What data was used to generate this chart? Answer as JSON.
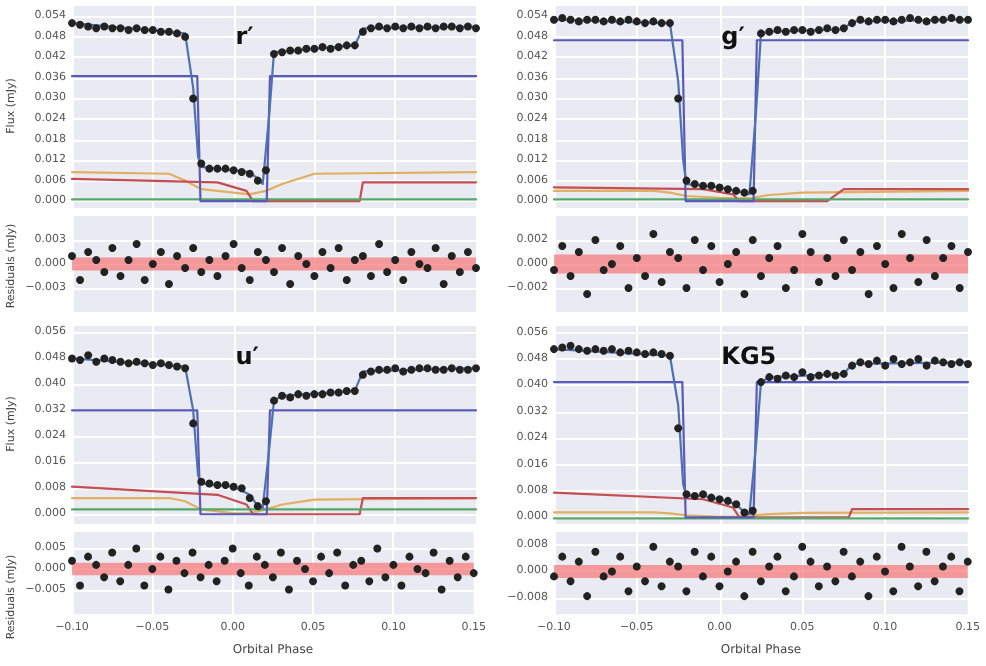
{
  "chart_data": [
    {
      "type": "line",
      "title": "r′",
      "ylabel": "Flux (mJy)",
      "grid": true,
      "tick_labels": "y",
      "xlim": [
        -0.1,
        0.15
      ],
      "xticks": [
        -0.1,
        -0.05,
        0,
        0.05,
        0.1,
        0.15
      ],
      "ylim": [
        -0.002,
        0.057
      ],
      "yticks": [
        {
          "value": 0,
          "label": "0.000"
        },
        {
          "value": 0.006,
          "label": "0.006"
        },
        {
          "value": 0.012,
          "label": "0.012"
        },
        {
          "value": 0.018,
          "label": "0.018"
        },
        {
          "value": 0.024,
          "label": "0.024"
        },
        {
          "value": 0.03,
          "label": "0.030"
        },
        {
          "value": 0.036,
          "label": "0.036"
        },
        {
          "value": 0.042,
          "label": "0.042"
        },
        {
          "value": 0.048,
          "label": "0.048"
        },
        {
          "value": 0.054,
          "label": "0.054"
        }
      ],
      "x": [
        -0.1,
        -0.095,
        -0.09,
        -0.085,
        -0.08,
        -0.075,
        -0.07,
        -0.065,
        -0.06,
        -0.055,
        -0.05,
        -0.045,
        -0.04,
        -0.035,
        -0.03,
        -0.025,
        -0.02,
        -0.015,
        -0.01,
        -0.005,
        0,
        0.005,
        0.01,
        0.015,
        0.02,
        0.025,
        0.03,
        0.035,
        0.04,
        0.045,
        0.05,
        0.055,
        0.06,
        0.065,
        0.07,
        0.075,
        0.08,
        0.085,
        0.09,
        0.095,
        0.1,
        0.105,
        0.11,
        0.115,
        0.12,
        0.125,
        0.13,
        0.135,
        0.14,
        0.145,
        0.15
      ],
      "series": [
        {
          "type": "line",
          "color": "#e0b060",
          "x": [
            -0.1,
            -0.04,
            -0.03,
            -0.02,
            0,
            0.01,
            0.02,
            0.03,
            0.05,
            0.15
          ],
          "values": [
            0.0085,
            0.008,
            0.006,
            0.0035,
            0.0025,
            0.002,
            0.003,
            0.005,
            0.008,
            0.0085
          ]
        },
        {
          "type": "line",
          "color": "#c44e52",
          "x": [
            -0.1,
            -0.01,
            0.008,
            0.012,
            0.078,
            0.08,
            0.15
          ],
          "values": [
            0.0065,
            0.0055,
            0.003,
            0,
            0,
            0.0055,
            0.0055
          ]
        },
        {
          "type": "line",
          "color": "#55a868",
          "x": [
            -0.1,
            0.15
          ],
          "values": [
            0.0005,
            0.0005
          ]
        },
        {
          "type": "line",
          "color": "#5a5ab8",
          "x": [
            -0.1,
            -0.0225,
            -0.0205,
            0.0205,
            0.0225,
            0.15
          ],
          "values": [
            0.0365,
            0.0365,
            0,
            0,
            0.0365,
            0.0365
          ]
        },
        {
          "type": "line",
          "color": "#4c72b0",
          "x": [
            -0.1,
            -0.03,
            -0.025,
            -0.022,
            -0.02,
            -0.01,
            0,
            0.01,
            0.015,
            0.018,
            0.022,
            0.025,
            0.03,
            0.075,
            0.08,
            0.15
          ],
          "values": [
            0.052,
            0.049,
            0.033,
            0.013,
            0.01,
            0.0095,
            0.009,
            0.0085,
            0.0065,
            0.005,
            0.025,
            0.0435,
            0.0437,
            0.0455,
            0.0505,
            0.051
          ]
        },
        {
          "type": "scatter",
          "color": "#222222",
          "values": [
            0.052,
            0.0515,
            0.051,
            0.0505,
            0.051,
            0.0505,
            0.0505,
            0.05,
            0.0505,
            0.05,
            0.05,
            0.0495,
            0.0495,
            0.049,
            0.048,
            0.03,
            0.011,
            0.0095,
            0.0095,
            0.0095,
            0.009,
            0.0085,
            0.008,
            0.006,
            0.009,
            0.043,
            0.0435,
            0.044,
            0.044,
            0.0445,
            0.0445,
            0.045,
            0.0445,
            0.045,
            0.0455,
            0.0455,
            0.0495,
            0.0505,
            0.051,
            0.0505,
            0.051,
            0.0505,
            0.051,
            0.0505,
            0.051,
            0.0505,
            0.051,
            0.051,
            0.0505,
            0.051,
            0.0505
          ]
        }
      ]
    },
    {
      "type": "scatter",
      "ylabel": "Residuals (mJy)",
      "grid": true,
      "tick_labels": "y",
      "xlim": [
        -0.1,
        0.15
      ],
      "xticks": [
        -0.1,
        -0.05,
        0,
        0.05,
        0.1,
        0.15
      ],
      "ylim": [
        -0.006,
        0.006
      ],
      "yticks": [
        {
          "value": -0.003,
          "label": "−0.003"
        },
        {
          "value": 0,
          "label": "0.000"
        },
        {
          "value": 0.003,
          "label": "0.003"
        }
      ],
      "bands": [
        {
          "axis": "y",
          "from": -0.0008,
          "to": 0.0008,
          "color": "#f47c7c"
        }
      ],
      "x": [
        -0.1,
        -0.095,
        -0.09,
        -0.085,
        -0.08,
        -0.075,
        -0.07,
        -0.065,
        -0.06,
        -0.055,
        -0.05,
        -0.045,
        -0.04,
        -0.035,
        -0.03,
        -0.025,
        -0.02,
        -0.015,
        -0.01,
        -0.005,
        0,
        0.005,
        0.01,
        0.015,
        0.02,
        0.025,
        0.03,
        0.035,
        0.04,
        0.045,
        0.05,
        0.055,
        0.06,
        0.065,
        0.07,
        0.075,
        0.08,
        0.085,
        0.09,
        0.095,
        0.1,
        0.105,
        0.11,
        0.115,
        0.12,
        0.125,
        0.13,
        0.135,
        0.14,
        0.145,
        0.15
      ],
      "series": [
        {
          "color": "#222222",
          "values": [
            0.001,
            -0.002,
            0.0015,
            0.0005,
            -0.001,
            0.002,
            -0.0015,
            0.0005,
            0.0025,
            -0.002,
            0,
            0.0015,
            -0.0025,
            0.001,
            -0.0005,
            0.002,
            -0.001,
            0.0005,
            -0.0015,
            0.001,
            0.0025,
            -0.0005,
            -0.002,
            0.0015,
            0.0005,
            -0.001,
            0.002,
            -0.0025,
            0.001,
            0,
            -0.0015,
            0.0015,
            -0.0005,
            0.002,
            -0.002,
            0.0005,
            0.001,
            -0.0015,
            0.0025,
            -0.001,
            0.0005,
            -0.002,
            0.0015,
            0,
            -0.0005,
            0.002,
            -0.0025,
            0.001,
            -0.001,
            0.0015,
            -0.0005
          ]
        }
      ]
    },
    {
      "type": "line",
      "title": "g′",
      "grid": true,
      "tick_labels": "y",
      "xlim": [
        -0.1,
        0.15
      ],
      "xticks": [
        -0.1,
        -0.05,
        0,
        0.05,
        0.1,
        0.15
      ],
      "ylim": [
        -0.002,
        0.057
      ],
      "yticks": [
        {
          "value": 0,
          "label": "0.000"
        },
        {
          "value": 0.006,
          "label": "0.006"
        },
        {
          "value": 0.012,
          "label": "0.012"
        },
        {
          "value": 0.018,
          "label": "0.018"
        },
        {
          "value": 0.024,
          "label": "0.024"
        },
        {
          "value": 0.03,
          "label": "0.030"
        },
        {
          "value": 0.036,
          "label": "0.036"
        },
        {
          "value": 0.042,
          "label": "0.042"
        },
        {
          "value": 0.048,
          "label": "0.048"
        },
        {
          "value": 0.054,
          "label": "0.054"
        }
      ],
      "x": [
        -0.1,
        -0.095,
        -0.09,
        -0.085,
        -0.08,
        -0.075,
        -0.07,
        -0.065,
        -0.06,
        -0.055,
        -0.05,
        -0.045,
        -0.04,
        -0.035,
        -0.03,
        -0.025,
        -0.02,
        -0.015,
        -0.01,
        -0.005,
        0,
        0.005,
        0.01,
        0.015,
        0.02,
        0.025,
        0.03,
        0.035,
        0.04,
        0.045,
        0.05,
        0.055,
        0.06,
        0.065,
        0.07,
        0.075,
        0.08,
        0.085,
        0.09,
        0.095,
        0.1,
        0.105,
        0.11,
        0.115,
        0.12,
        0.125,
        0.13,
        0.135,
        0.14,
        0.145,
        0.15
      ],
      "series": [
        {
          "type": "line",
          "color": "#e0b060",
          "x": [
            -0.1,
            -0.04,
            -0.03,
            -0.02,
            0,
            0.01,
            0.02,
            0.03,
            0.05,
            0.15
          ],
          "values": [
            0.003,
            0.003,
            0.0025,
            0.0015,
            0.001,
            0.0008,
            0.001,
            0.0018,
            0.0025,
            0.003
          ]
        },
        {
          "type": "line",
          "color": "#c44e52",
          "x": [
            -0.1,
            -0.01,
            0.008,
            0.012,
            0.065,
            0.075,
            0.15
          ],
          "values": [
            0.004,
            0.0035,
            0.002,
            0,
            0,
            0.0035,
            0.0035
          ]
        },
        {
          "type": "line",
          "color": "#55a868",
          "x": [
            -0.1,
            0.15
          ],
          "values": [
            0.0005,
            0.0005
          ]
        },
        {
          "type": "line",
          "color": "#5a5ab8",
          "x": [
            -0.1,
            -0.0225,
            -0.0205,
            0.0205,
            0.0225,
            0.15
          ],
          "values": [
            0.047,
            0.047,
            0,
            0,
            0.047,
            0.047
          ]
        },
        {
          "type": "line",
          "color": "#4c72b0",
          "x": [
            -0.1,
            -0.03,
            -0.025,
            -0.022,
            -0.02,
            -0.01,
            0,
            0.01,
            0.015,
            0.018,
            0.022,
            0.025,
            0.03,
            0.075,
            0.08,
            0.15
          ],
          "values": [
            0.053,
            0.052,
            0.035,
            0.012,
            0.005,
            0.0045,
            0.004,
            0.003,
            0.0025,
            0.002,
            0.026,
            0.049,
            0.0495,
            0.0502,
            0.0525,
            0.053
          ]
        },
        {
          "type": "scatter",
          "color": "#222222",
          "values": [
            0.053,
            0.0535,
            0.053,
            0.0525,
            0.053,
            0.053,
            0.0525,
            0.053,
            0.0525,
            0.053,
            0.0525,
            0.052,
            0.0525,
            0.052,
            0.052,
            0.03,
            0.006,
            0.005,
            0.0045,
            0.0045,
            0.004,
            0.0035,
            0.003,
            0.0025,
            0.003,
            0.049,
            0.0495,
            0.05,
            0.0495,
            0.05,
            0.05,
            0.0495,
            0.05,
            0.0505,
            0.05,
            0.0505,
            0.052,
            0.053,
            0.0525,
            0.053,
            0.053,
            0.0525,
            0.053,
            0.0535,
            0.053,
            0.0525,
            0.053,
            0.053,
            0.0535,
            0.053,
            0.053
          ]
        }
      ]
    },
    {
      "type": "scatter",
      "grid": true,
      "tick_labels": "y",
      "xlim": [
        -0.1,
        0.15
      ],
      "xticks": [
        -0.1,
        -0.05,
        0,
        0.05,
        0.1,
        0.15
      ],
      "ylim": [
        -0.004,
        0.004
      ],
      "yticks": [
        {
          "value": -0.002,
          "label": "−0.002"
        },
        {
          "value": 0,
          "label": "0.000"
        },
        {
          "value": 0.002,
          "label": "0.002"
        }
      ],
      "bands": [
        {
          "axis": "y",
          "from": -0.0008,
          "to": 0.0008,
          "color": "#f47c7c"
        }
      ],
      "x": [
        -0.1,
        -0.095,
        -0.09,
        -0.085,
        -0.08,
        -0.075,
        -0.07,
        -0.065,
        -0.06,
        -0.055,
        -0.05,
        -0.045,
        -0.04,
        -0.035,
        -0.03,
        -0.025,
        -0.02,
        -0.015,
        -0.01,
        -0.005,
        0,
        0.005,
        0.01,
        0.015,
        0.02,
        0.025,
        0.03,
        0.035,
        0.04,
        0.045,
        0.05,
        0.055,
        0.06,
        0.065,
        0.07,
        0.075,
        0.08,
        0.085,
        0.09,
        0.095,
        0.1,
        0.105,
        0.11,
        0.115,
        0.12,
        0.125,
        0.13,
        0.135,
        0.14,
        0.145,
        0.15
      ],
      "series": [
        {
          "color": "#222222",
          "values": [
            -0.0005,
            0.0015,
            -0.001,
            0.001,
            -0.0025,
            0.002,
            -0.0005,
            0,
            0.0015,
            -0.002,
            0.0005,
            -0.001,
            0.0025,
            -0.0015,
            0.001,
            0.0005,
            -0.002,
            0.002,
            -0.0005,
            0.0015,
            -0.0015,
            0,
            0.001,
            -0.0025,
            0.002,
            -0.001,
            0.0005,
            0.0015,
            -0.002,
            -0.0005,
            0.0025,
            0.001,
            -0.0015,
            0.0005,
            -0.001,
            0.002,
            -0.0005,
            0.001,
            -0.0025,
            0.0015,
            0,
            -0.002,
            0.0025,
            0.0005,
            -0.0015,
            0.002,
            -0.001,
            0.0005,
            0.0015,
            -0.002,
            0.001
          ]
        }
      ]
    },
    {
      "type": "line",
      "title": "u′",
      "ylabel": "Flux (mJy)",
      "grid": true,
      "tick_labels": "y",
      "xlim": [
        -0.1,
        0.15
      ],
      "xticks": [
        -0.1,
        -0.05,
        0,
        0.05,
        0.1,
        0.15
      ],
      "ylim": [
        -0.003,
        0.058
      ],
      "yticks": [
        {
          "value": 0,
          "label": "0.000"
        },
        {
          "value": 0.008,
          "label": "0.008"
        },
        {
          "value": 0.016,
          "label": "0.016"
        },
        {
          "value": 0.024,
          "label": "0.024"
        },
        {
          "value": 0.032,
          "label": "0.032"
        },
        {
          "value": 0.04,
          "label": "0.040"
        },
        {
          "value": 0.048,
          "label": "0.048"
        },
        {
          "value": 0.056,
          "label": "0.056"
        }
      ],
      "x": [
        -0.1,
        -0.095,
        -0.09,
        -0.085,
        -0.08,
        -0.075,
        -0.07,
        -0.065,
        -0.06,
        -0.055,
        -0.05,
        -0.045,
        -0.04,
        -0.035,
        -0.03,
        -0.025,
        -0.02,
        -0.015,
        -0.01,
        -0.005,
        0,
        0.005,
        0.01,
        0.015,
        0.02,
        0.025,
        0.03,
        0.035,
        0.04,
        0.045,
        0.05,
        0.055,
        0.06,
        0.065,
        0.07,
        0.075,
        0.08,
        0.085,
        0.09,
        0.095,
        0.1,
        0.105,
        0.11,
        0.115,
        0.12,
        0.125,
        0.13,
        0.135,
        0.14,
        0.145,
        0.15
      ],
      "series": [
        {
          "type": "line",
          "color": "#e0b060",
          "x": [
            -0.1,
            -0.04,
            -0.03,
            -0.02,
            0,
            0.01,
            0.02,
            0.03,
            0.05,
            0.15
          ],
          "values": [
            0.005,
            0.005,
            0.004,
            0.0015,
            0.0003,
            0.0003,
            0.0015,
            0.003,
            0.0045,
            0.005
          ]
        },
        {
          "type": "line",
          "color": "#c44e52",
          "x": [
            -0.1,
            -0.01,
            0.008,
            0.012,
            0.078,
            0.08,
            0.15
          ],
          "values": [
            0.0085,
            0.006,
            0.003,
            0,
            0,
            0.005,
            0.005
          ]
        },
        {
          "type": "line",
          "color": "#55a868",
          "x": [
            -0.1,
            0.15
          ],
          "values": [
            0.0015,
            0.0015
          ]
        },
        {
          "type": "line",
          "color": "#5a5ab8",
          "x": [
            -0.1,
            -0.0225,
            -0.0205,
            0.0205,
            0.0225,
            0.15
          ],
          "values": [
            0.032,
            0.032,
            0,
            0,
            0.032,
            0.032
          ]
        },
        {
          "type": "line",
          "color": "#4c72b0",
          "x": [
            -0.1,
            -0.03,
            -0.025,
            -0.022,
            -0.02,
            -0.01,
            0,
            0.01,
            0.015,
            0.018,
            0.022,
            0.025,
            0.03,
            0.075,
            0.08,
            0.15
          ],
          "values": [
            0.048,
            0.0455,
            0.032,
            0.012,
            0.0095,
            0.009,
            0.0085,
            0.006,
            0.0025,
            0.002,
            0.02,
            0.035,
            0.0365,
            0.038,
            0.044,
            0.045
          ]
        },
        {
          "type": "scatter",
          "color": "#222222",
          "values": [
            0.048,
            0.0475,
            0.049,
            0.047,
            0.048,
            0.0475,
            0.047,
            0.0465,
            0.047,
            0.0465,
            0.046,
            0.0465,
            0.046,
            0.0455,
            0.045,
            0.028,
            0.01,
            0.0095,
            0.009,
            0.009,
            0.0085,
            0.008,
            0.005,
            0.0025,
            0.004,
            0.035,
            0.0365,
            0.036,
            0.037,
            0.0365,
            0.037,
            0.037,
            0.0375,
            0.0375,
            0.038,
            0.038,
            0.043,
            0.044,
            0.0445,
            0.0445,
            0.045,
            0.044,
            0.0445,
            0.045,
            0.045,
            0.0445,
            0.0445,
            0.045,
            0.0445,
            0.0445,
            0.045
          ]
        }
      ]
    },
    {
      "type": "scatter",
      "ylabel": "Residuals (mJy)",
      "xlabel": "Orbital Phase",
      "grid": true,
      "xlim": [
        -0.1,
        0.15
      ],
      "xticks": [
        {
          "value": -0.1,
          "label": "−0.10"
        },
        {
          "value": -0.05,
          "label": "−0.05"
        },
        {
          "value": 0,
          "label": "0.00"
        },
        {
          "value": 0.05,
          "label": "0.05"
        },
        {
          "value": 0.1,
          "label": "0.10"
        },
        {
          "value": 0.15,
          "label": "0.15"
        }
      ],
      "ylim": [
        -0.011,
        0.009
      ],
      "yticks": [
        {
          "value": -0.005,
          "label": "−0.005"
        },
        {
          "value": 0,
          "label": "0.000"
        },
        {
          "value": 0.005,
          "label": "0.005"
        }
      ],
      "bands": [
        {
          "axis": "y",
          "from": -0.0015,
          "to": 0.0015,
          "color": "#f47c7c"
        }
      ],
      "x": [
        -0.1,
        -0.095,
        -0.09,
        -0.085,
        -0.08,
        -0.075,
        -0.07,
        -0.065,
        -0.06,
        -0.055,
        -0.05,
        -0.045,
        -0.04,
        -0.035,
        -0.03,
        -0.025,
        -0.02,
        -0.015,
        -0.01,
        -0.005,
        0,
        0.005,
        0.01,
        0.015,
        0.02,
        0.025,
        0.03,
        0.035,
        0.04,
        0.045,
        0.05,
        0.055,
        0.06,
        0.065,
        0.07,
        0.075,
        0.08,
        0.085,
        0.09,
        0.095,
        0.1,
        0.105,
        0.11,
        0.115,
        0.12,
        0.125,
        0.13,
        0.135,
        0.14,
        0.145,
        0.15
      ],
      "series": [
        {
          "color": "#222222",
          "values": [
            0.002,
            -0.004,
            0.003,
            0.001,
            -0.002,
            0.004,
            -0.003,
            0.001,
            0.005,
            -0.004,
            0,
            0.003,
            -0.005,
            0.002,
            -0.001,
            0.004,
            -0.002,
            0.001,
            -0.003,
            0.002,
            0.005,
            -0.001,
            -0.004,
            0.003,
            0.001,
            -0.002,
            0.004,
            -0.005,
            0.002,
            0,
            -0.003,
            0.003,
            -0.001,
            0.004,
            -0.004,
            0.001,
            0.002,
            -0.003,
            0.005,
            -0.002,
            0.001,
            -0.004,
            0.003,
            0,
            -0.001,
            0.004,
            -0.005,
            0.002,
            -0.002,
            0.003,
            -0.001
          ]
        }
      ]
    },
    {
      "type": "line",
      "title": "KG5",
      "grid": true,
      "tick_labels": "y",
      "xlim": [
        -0.1,
        0.15
      ],
      "xticks": [
        -0.1,
        -0.05,
        0,
        0.05,
        0.1,
        0.15
      ],
      "ylim": [
        -0.002,
        0.058
      ],
      "yticks": [
        {
          "value": 0,
          "label": "0.000"
        },
        {
          "value": 0.008,
          "label": "0.008"
        },
        {
          "value": 0.016,
          "label": "0.016"
        },
        {
          "value": 0.024,
          "label": "0.024"
        },
        {
          "value": 0.032,
          "label": "0.032"
        },
        {
          "value": 0.04,
          "label": "0.040"
        },
        {
          "value": 0.048,
          "label": "0.048"
        },
        {
          "value": 0.056,
          "label": "0.056"
        }
      ],
      "x": [
        -0.1,
        -0.095,
        -0.09,
        -0.085,
        -0.08,
        -0.075,
        -0.07,
        -0.065,
        -0.06,
        -0.055,
        -0.05,
        -0.045,
        -0.04,
        -0.035,
        -0.03,
        -0.025,
        -0.02,
        -0.015,
        -0.01,
        -0.005,
        0,
        0.005,
        0.01,
        0.015,
        0.02,
        0.025,
        0.03,
        0.035,
        0.04,
        0.045,
        0.05,
        0.055,
        0.06,
        0.065,
        0.07,
        0.075,
        0.08,
        0.085,
        0.09,
        0.095,
        0.1,
        0.105,
        0.11,
        0.115,
        0.12,
        0.125,
        0.13,
        0.135,
        0.14,
        0.145,
        0.15
      ],
      "series": [
        {
          "type": "line",
          "color": "#e0b060",
          "x": [
            -0.1,
            -0.04,
            -0.03,
            -0.02,
            0,
            0.01,
            0.02,
            0.03,
            0.05,
            0.15
          ],
          "values": [
            0.0015,
            0.0015,
            0.0012,
            0.0006,
            0.0002,
            0.0002,
            0.0006,
            0.001,
            0.0014,
            0.0015
          ]
        },
        {
          "type": "line",
          "color": "#c44e52",
          "x": [
            -0.1,
            -0.01,
            0.008,
            0.012,
            0.078,
            0.08,
            0.15
          ],
          "values": [
            0.0075,
            0.0055,
            0.003,
            0,
            0,
            0.0025,
            0.0025
          ]
        },
        {
          "type": "line",
          "color": "#55a868",
          "x": [
            -0.1,
            0.15
          ],
          "values": [
            -0.0003,
            -0.0003
          ]
        },
        {
          "type": "line",
          "color": "#5a5ab8",
          "x": [
            -0.1,
            -0.0225,
            -0.0205,
            0.0205,
            0.0225,
            0.15
          ],
          "values": [
            0.041,
            0.041,
            0,
            0,
            0.041,
            0.041
          ]
        },
        {
          "type": "line",
          "color": "#4c72b0",
          "x": [
            -0.1,
            -0.03,
            -0.025,
            -0.022,
            -0.02,
            -0.01,
            0,
            0.01,
            0.015,
            0.018,
            0.022,
            0.025,
            0.03,
            0.075,
            0.08,
            0.15
          ],
          "values": [
            0.051,
            0.049,
            0.034,
            0.01,
            0.0065,
            0.0065,
            0.0055,
            0.004,
            0.0015,
            0.001,
            0.022,
            0.041,
            0.0425,
            0.0435,
            0.0465,
            0.047
          ]
        },
        {
          "type": "scatter",
          "color": "#222222",
          "values": [
            0.051,
            0.0515,
            0.052,
            0.051,
            0.0505,
            0.051,
            0.0505,
            0.051,
            0.05,
            0.0505,
            0.05,
            0.0495,
            0.05,
            0.0495,
            0.049,
            0.027,
            0.007,
            0.0065,
            0.007,
            0.006,
            0.0055,
            0.005,
            0.004,
            0.0015,
            0.002,
            0.041,
            0.0425,
            0.042,
            0.043,
            0.0425,
            0.044,
            0.0425,
            0.043,
            0.0435,
            0.043,
            0.0435,
            0.046,
            0.047,
            0.0465,
            0.0475,
            0.046,
            0.048,
            0.0465,
            0.047,
            0.048,
            0.046,
            0.0475,
            0.047,
            0.0465,
            0.047,
            0.0465
          ]
        }
      ]
    },
    {
      "type": "scatter",
      "xlabel": "Orbital Phase",
      "grid": true,
      "xlim": [
        -0.1,
        0.15
      ],
      "xticks": [
        {
          "value": -0.1,
          "label": "−0.10"
        },
        {
          "value": -0.05,
          "label": "−0.05"
        },
        {
          "value": 0,
          "label": "0.00"
        },
        {
          "value": 0.05,
          "label": "0.05"
        },
        {
          "value": 0.1,
          "label": "0.10"
        },
        {
          "value": 0.15,
          "label": "0.15"
        }
      ],
      "ylim": [
        -0.013,
        0.012
      ],
      "yticks": [
        {
          "value": -0.008,
          "label": "−0.008"
        },
        {
          "value": 0,
          "label": "0.000"
        },
        {
          "value": 0.008,
          "label": "0.008"
        }
      ],
      "bands": [
        {
          "axis": "y",
          "from": -0.002,
          "to": 0.002,
          "color": "#f47c7c"
        }
      ],
      "x": [
        -0.1,
        -0.095,
        -0.09,
        -0.085,
        -0.08,
        -0.075,
        -0.07,
        -0.065,
        -0.06,
        -0.055,
        -0.05,
        -0.045,
        -0.04,
        -0.035,
        -0.03,
        -0.025,
        -0.02,
        -0.015,
        -0.01,
        -0.005,
        0,
        0.005,
        0.01,
        0.015,
        0.02,
        0.025,
        0.03,
        0.035,
        0.04,
        0.045,
        0.05,
        0.055,
        0.06,
        0.065,
        0.07,
        0.075,
        0.08,
        0.085,
        0.09,
        0.095,
        0.1,
        0.105,
        0.11,
        0.115,
        0.12,
        0.125,
        0.13,
        0.135,
        0.14,
        0.145,
        0.15
      ],
      "series": [
        {
          "color": "#222222",
          "values": [
            -0.0015,
            0.0045,
            -0.003,
            0.003,
            -0.0075,
            0.006,
            -0.0015,
            0,
            0.0045,
            -0.006,
            0.0015,
            -0.003,
            0.0075,
            -0.0045,
            0.003,
            0.0015,
            -0.006,
            0.006,
            -0.0015,
            0.0045,
            -0.0045,
            0,
            0.003,
            -0.0075,
            0.006,
            -0.003,
            0.0015,
            0.0045,
            -0.006,
            -0.0015,
            0.0075,
            0.003,
            -0.0045,
            0.0015,
            -0.003,
            0.006,
            -0.0015,
            0.003,
            -0.0075,
            0.0045,
            0,
            -0.006,
            0.0075,
            0.0015,
            -0.0045,
            0.006,
            -0.003,
            0.0015,
            0.0045,
            -0.006,
            0.003
          ]
        }
      ]
    }
  ]
}
